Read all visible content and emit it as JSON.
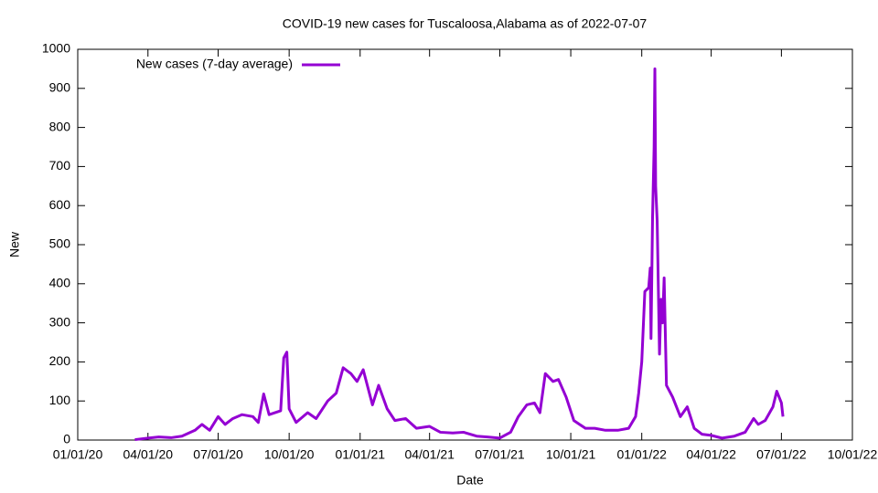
{
  "chart_data": {
    "type": "line",
    "title": "COVID-19 new cases for Tuscaloosa,Alabama as of 2022-07-07",
    "x_label": "Date",
    "y_label": "New",
    "x": [
      "2020-03-15",
      "2020-04-01",
      "2020-04-15",
      "2020-05-01",
      "2020-05-15",
      "2020-06-01",
      "2020-06-10",
      "2020-06-20",
      "2020-07-01",
      "2020-07-10",
      "2020-07-20",
      "2020-08-01",
      "2020-08-15",
      "2020-08-22",
      "2020-08-29",
      "2020-09-05",
      "2020-09-20",
      "2020-09-24",
      "2020-09-28",
      "2020-10-01",
      "2020-10-10",
      "2020-10-25",
      "2020-11-05",
      "2020-11-20",
      "2020-12-01",
      "2020-12-10",
      "2020-12-20",
      "2020-12-28",
      "2021-01-05",
      "2021-01-17",
      "2021-01-25",
      "2021-02-05",
      "2021-02-15",
      "2021-03-01",
      "2021-03-15",
      "2021-04-01",
      "2021-04-15",
      "2021-05-01",
      "2021-05-15",
      "2021-06-01",
      "2021-06-15",
      "2021-07-01",
      "2021-07-15",
      "2021-07-25",
      "2021-08-05",
      "2021-08-15",
      "2021-08-22",
      "2021-08-29",
      "2021-09-08",
      "2021-09-15",
      "2021-09-25",
      "2021-10-05",
      "2021-10-20",
      "2021-11-01",
      "2021-11-15",
      "2021-12-01",
      "2021-12-15",
      "2021-12-24",
      "2021-12-28",
      "2022-01-01",
      "2022-01-05",
      "2022-01-10",
      "2022-01-12",
      "2022-01-13",
      "2022-01-15",
      "2022-01-17",
      "2022-01-18",
      "2022-01-19",
      "2022-01-21",
      "2022-01-24",
      "2022-01-26",
      "2022-01-28",
      "2022-01-30",
      "2022-02-02",
      "2022-02-10",
      "2022-02-20",
      "2022-03-01",
      "2022-03-10",
      "2022-03-20",
      "2022-04-01",
      "2022-04-15",
      "2022-05-01",
      "2022-05-15",
      "2022-05-26",
      "2022-06-01",
      "2022-06-10",
      "2022-06-20",
      "2022-06-25",
      "2022-07-01",
      "2022-07-03"
    ],
    "series": [
      {
        "name": "New cases (7-day average)",
        "color": "#9400d3",
        "values": [
          1,
          5,
          8,
          6,
          10,
          25,
          40,
          25,
          60,
          40,
          55,
          65,
          60,
          45,
          118,
          65,
          75,
          210,
          225,
          80,
          45,
          70,
          55,
          100,
          120,
          185,
          170,
          150,
          180,
          90,
          140,
          80,
          50,
          55,
          30,
          35,
          20,
          18,
          20,
          10,
          8,
          5,
          20,
          60,
          90,
          95,
          70,
          170,
          150,
          155,
          110,
          50,
          30,
          30,
          25,
          25,
          30,
          60,
          120,
          200,
          380,
          390,
          440,
          260,
          570,
          750,
          950,
          650,
          560,
          220,
          360,
          300,
          415,
          140,
          110,
          60,
          85,
          30,
          15,
          12,
          5,
          10,
          20,
          55,
          40,
          50,
          85,
          125,
          95,
          60
        ]
      }
    ],
    "xlim": [
      "2020-01-01",
      "2022-10-01"
    ],
    "xticks": [
      {
        "value": "2020-01-01",
        "label": "01/01/20"
      },
      {
        "value": "2020-04-01",
        "label": "04/01/20"
      },
      {
        "value": "2020-07-01",
        "label": "07/01/20"
      },
      {
        "value": "2020-10-01",
        "label": "10/01/20"
      },
      {
        "value": "2021-01-01",
        "label": "01/01/21"
      },
      {
        "value": "2021-04-01",
        "label": "04/01/21"
      },
      {
        "value": "2021-07-01",
        "label": "07/01/21"
      },
      {
        "value": "2021-10-01",
        "label": "10/01/21"
      },
      {
        "value": "2022-01-01",
        "label": "01/01/22"
      },
      {
        "value": "2022-04-01",
        "label": "04/01/22"
      },
      {
        "value": "2022-07-01",
        "label": "07/01/22"
      },
      {
        "value": "2022-10-01",
        "label": "10/01/22"
      }
    ],
    "ylim": [
      0,
      1000
    ],
    "yticks": [
      0,
      100,
      200,
      300,
      400,
      500,
      600,
      700,
      800,
      900,
      1000
    ],
    "legend": "upper-left"
  }
}
